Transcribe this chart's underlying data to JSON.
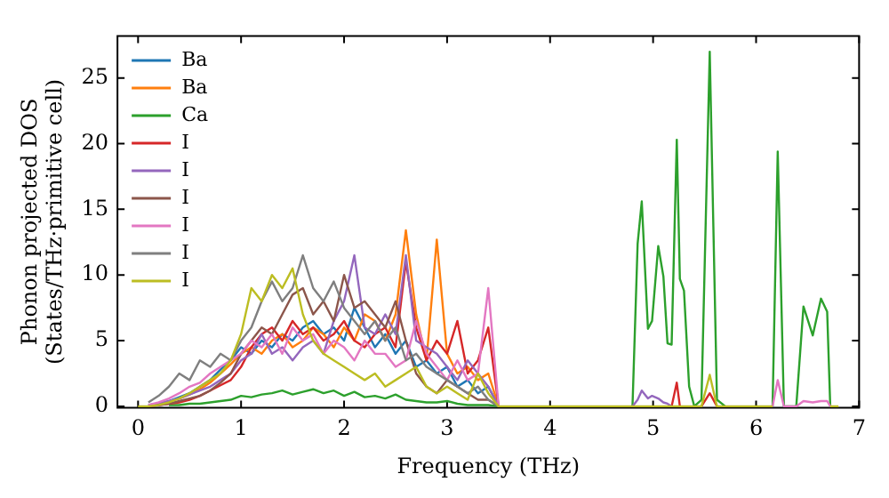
{
  "chart_data": {
    "type": "line",
    "xlabel": "Frequency (THz)",
    "ylabel": "Phonon projected DOS\n(States/THz·primitive cell)",
    "x": [
      0,
      0.1,
      0.2,
      0.3,
      0.4,
      0.5,
      0.6,
      0.7,
      0.8,
      0.9,
      1.0,
      1.1,
      1.2,
      1.3,
      1.4,
      1.5,
      1.6,
      1.7,
      1.8,
      1.9,
      2.0,
      2.1,
      2.2,
      2.3,
      2.4,
      2.5,
      2.6,
      2.7,
      2.8,
      2.9,
      3.0,
      3.1,
      3.2,
      3.3,
      3.4,
      3.5,
      3.6,
      4.8,
      4.85,
      4.89,
      4.95,
      4.99,
      5.05,
      5.1,
      5.14,
      5.18,
      5.23,
      5.26,
      5.3,
      5.35,
      5.4,
      5.47,
      5.55,
      5.62,
      5.7,
      6.1,
      6.16,
      6.21,
      6.27,
      6.39,
      6.46,
      6.55,
      6.63,
      6.69,
      6.72,
      6.8
    ],
    "xlim": [
      -0.2,
      7.0
    ],
    "xticks": [
      0,
      1,
      2,
      3,
      4,
      5,
      6,
      7
    ],
    "ylim": [
      -0.1,
      28.2
    ],
    "yticks": [
      0,
      5,
      10,
      15,
      20,
      25
    ],
    "grid": false,
    "legend": "top left",
    "marker": "none",
    "line_style": "solid",
    "series": [
      {
        "name": "Ba",
        "color": "#1f77b4",
        "values": [
          null,
          0.1,
          0.2,
          0.4,
          0.7,
          1.0,
          1.5,
          2.0,
          2.8,
          3.5,
          4.5,
          4.0,
          5.0,
          4.5,
          5.5,
          5.0,
          6.0,
          6.5,
          5.5,
          6.0,
          5.0,
          7.5,
          6.0,
          4.5,
          5.5,
          4.0,
          5.0,
          3.0,
          3.5,
          2.5,
          3.0,
          1.5,
          2.0,
          1.0,
          1.5,
          0,
          null,
          null,
          null,
          null,
          null,
          null,
          null,
          null,
          null,
          null,
          null,
          null,
          null,
          null,
          null,
          null,
          null,
          null,
          null,
          null,
          null,
          null,
          null,
          null,
          null,
          null,
          null,
          null,
          null,
          null
        ]
      },
      {
        "name": "Ba",
        "color": "#ff7f0e",
        "values": [
          null,
          null,
          null,
          null,
          0.6,
          0.9,
          1.3,
          1.8,
          2.5,
          3.2,
          4.0,
          4.5,
          4.0,
          5.0,
          5.5,
          4.5,
          5.0,
          6.0,
          5.5,
          4.5,
          6.0,
          5.0,
          7.0,
          6.5,
          5.0,
          7.0,
          13.4,
          7.0,
          3.5,
          12.7,
          4.0,
          2.5,
          3.0,
          2.0,
          2.5,
          0,
          null,
          null,
          null,
          null,
          null,
          null,
          null,
          null,
          null,
          null,
          null,
          null,
          null,
          null,
          null,
          null,
          null,
          null,
          null,
          null,
          null,
          null,
          null,
          null,
          null,
          null,
          null,
          null,
          null,
          null
        ]
      },
      {
        "name": "Ca",
        "color": "#2ca02c",
        "values": [
          null,
          null,
          null,
          0.1,
          0.1,
          0.2,
          0.2,
          0.3,
          0.4,
          0.5,
          0.8,
          0.7,
          0.9,
          1.0,
          1.2,
          0.9,
          1.1,
          1.3,
          1.0,
          1.2,
          0.8,
          1.1,
          0.7,
          0.8,
          0.6,
          0.9,
          0.5,
          0.4,
          0.3,
          0.3,
          0.4,
          0.2,
          0.1,
          0.1,
          0.1,
          0,
          null,
          0,
          12.4,
          15.6,
          5.9,
          6.5,
          12.2,
          9.9,
          4.8,
          4.7,
          20.3,
          9.7,
          8.8,
          1.5,
          0,
          0.5,
          27.0,
          0.5,
          0,
          null,
          0,
          19.4,
          0,
          0,
          7.6,
          5.4,
          8.2,
          7.2,
          0,
          null
        ]
      },
      {
        "name": "I",
        "color": "#d62728",
        "values": [
          null,
          0,
          0.1,
          0.2,
          0.3,
          0.5,
          0.8,
          1.2,
          1.6,
          2.0,
          3.0,
          4.5,
          5.5,
          6.0,
          5.0,
          6.5,
          5.5,
          6.0,
          5.0,
          5.5,
          6.5,
          5.0,
          4.5,
          5.5,
          6.0,
          4.5,
          11.0,
          6.0,
          3.5,
          5.0,
          4.0,
          6.5,
          2.5,
          3.5,
          6.0,
          0,
          null,
          null,
          null,
          null,
          null,
          null,
          null,
          null,
          null,
          0,
          1.8,
          0,
          null,
          null,
          null,
          0,
          1.0,
          0,
          null,
          null,
          null,
          null,
          null,
          null,
          null,
          null,
          null,
          null,
          null,
          null
        ]
      },
      {
        "name": "I",
        "color": "#9467bd",
        "values": [
          null,
          0.1,
          0.2,
          0.4,
          0.6,
          0.9,
          1.2,
          1.5,
          2.0,
          2.5,
          3.5,
          4.0,
          5.5,
          4.0,
          4.5,
          3.5,
          4.5,
          5.0,
          4.0,
          6.5,
          8.0,
          11.5,
          6.0,
          5.5,
          7.0,
          5.5,
          11.5,
          5.0,
          4.5,
          4.0,
          3.0,
          2.0,
          3.5,
          2.5,
          1.5,
          0,
          null,
          0,
          0.5,
          1.2,
          0.6,
          0.8,
          0.6,
          0.3,
          0.2,
          0,
          null,
          null,
          null,
          null,
          null,
          null,
          null,
          null,
          null,
          null,
          null,
          null,
          null,
          null,
          null,
          null,
          null,
          null,
          null,
          null
        ]
      },
      {
        "name": "I",
        "color": "#8c564b",
        "values": [
          null,
          0,
          0.1,
          0.2,
          0.4,
          0.6,
          0.8,
          1.2,
          1.8,
          2.5,
          4.0,
          5.0,
          6.0,
          5.5,
          7.0,
          8.5,
          9.0,
          7.0,
          8.0,
          6.5,
          10.0,
          7.5,
          8.0,
          7.0,
          6.0,
          8.0,
          5.0,
          2.5,
          1.5,
          1.0,
          2.0,
          1.5,
          1.0,
          0.5,
          0.5,
          0,
          null,
          null,
          null,
          null,
          null,
          null,
          null,
          null,
          null,
          null,
          null,
          null,
          null,
          null,
          null,
          null,
          null,
          null,
          null,
          null,
          null,
          null,
          null,
          null,
          null,
          null,
          null,
          null,
          null,
          null
        ]
      },
      {
        "name": "I",
        "color": "#e377c2",
        "values": [
          null,
          0.1,
          0.3,
          0.6,
          1.0,
          1.5,
          1.8,
          2.5,
          3.0,
          3.5,
          4.0,
          5.0,
          4.5,
          5.5,
          4.0,
          6.0,
          5.0,
          5.5,
          4.0,
          5.0,
          4.5,
          3.5,
          5.0,
          4.0,
          4.0,
          3.0,
          3.5,
          6.5,
          4.0,
          3.0,
          2.0,
          3.5,
          2.0,
          2.5,
          9.0,
          0,
          null,
          null,
          null,
          null,
          null,
          null,
          null,
          null,
          null,
          null,
          null,
          null,
          null,
          null,
          null,
          null,
          null,
          null,
          null,
          null,
          0,
          2.0,
          0,
          0,
          0.4,
          0.3,
          0.4,
          0.4,
          0,
          null
        ]
      },
      {
        "name": "I",
        "color": "#7f7f7f",
        "values": [
          null,
          0.3,
          0.8,
          1.5,
          2.5,
          2.0,
          3.5,
          3.0,
          4.0,
          3.5,
          5.0,
          6.0,
          8.0,
          9.5,
          8.0,
          9.0,
          11.5,
          9.0,
          8.0,
          9.5,
          7.5,
          6.5,
          5.5,
          6.5,
          5.0,
          6.0,
          3.5,
          4.0,
          3.0,
          2.5,
          2.0,
          1.5,
          1.0,
          1.5,
          0.5,
          0,
          null,
          null,
          null,
          null,
          null,
          null,
          null,
          null,
          null,
          null,
          null,
          null,
          null,
          null,
          null,
          null,
          null,
          null,
          null,
          null,
          null,
          null,
          null,
          null,
          null,
          null,
          null,
          null,
          null,
          null
        ]
      },
      {
        "name": "I",
        "color": "#bcbd22",
        "values": [
          0,
          0,
          0.1,
          0.3,
          0.6,
          1.0,
          1.5,
          2.0,
          2.5,
          3.5,
          5.5,
          9.0,
          8.0,
          10.0,
          9.0,
          10.5,
          7.0,
          5.0,
          4.0,
          3.5,
          3.0,
          2.5,
          2.0,
          2.5,
          1.5,
          2.0,
          2.5,
          3.0,
          1.5,
          1.0,
          1.5,
          1.0,
          0.5,
          2.5,
          1.0,
          0,
          0,
          0,
          0,
          0,
          0,
          0,
          0,
          0,
          0,
          0,
          0,
          0,
          0,
          0,
          0,
          0,
          2.4,
          0,
          0,
          0,
          0,
          null,
          null,
          null,
          null,
          null,
          null,
          null,
          0,
          0
        ]
      }
    ]
  }
}
